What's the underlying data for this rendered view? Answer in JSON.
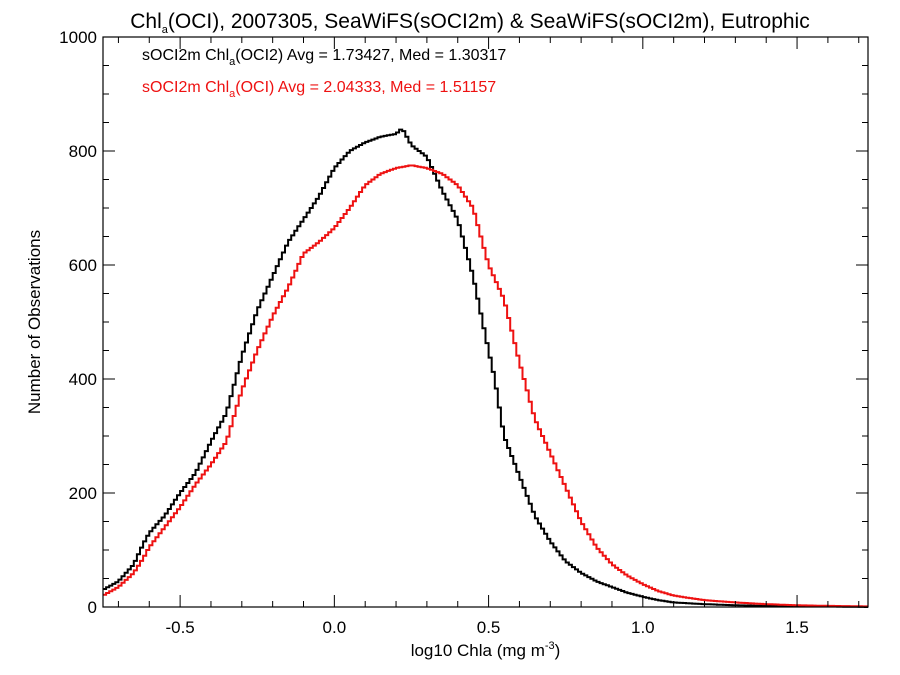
{
  "chart_data": {
    "type": "line",
    "title": {
      "prefix": "Chl",
      "sub": "a",
      "suffix": "(OCI), 2007305, SeaWiFS(sOCI2m) & SeaWiFS(sOCI2m), Eutrophic"
    },
    "xlabel": {
      "prefix": "log10 Chla (mg m",
      "sup": "-3",
      "suffix": ")"
    },
    "ylabel": "Number of Observations",
    "xlim": [
      -0.75,
      1.73
    ],
    "ylim": [
      0,
      1000
    ],
    "xticks": [
      -0.5,
      0.0,
      0.5,
      1.0,
      1.5
    ],
    "xtick_labels": [
      "-0.5",
      "0.0",
      "0.5",
      "1.0",
      "1.5"
    ],
    "yticks": [
      0,
      200,
      400,
      600,
      800,
      1000
    ],
    "ytick_labels": [
      "0",
      "200",
      "400",
      "600",
      "800",
      "1000"
    ],
    "step": true,
    "legend_position": "top-left",
    "series": [
      {
        "legend": {
          "prefix": "sOCI2m Chl",
          "sub": "a",
          "suffix": "(OCI2) Avg = 1.73427, Med = 1.30317"
        },
        "color": "#000000",
        "points": [
          [
            -0.75,
            30
          ],
          [
            -0.7,
            45
          ],
          [
            -0.65,
            75
          ],
          [
            -0.62,
            110
          ],
          [
            -0.6,
            130
          ],
          [
            -0.55,
            160
          ],
          [
            -0.5,
            200
          ],
          [
            -0.45,
            235
          ],
          [
            -0.4,
            290
          ],
          [
            -0.35,
            340
          ],
          [
            -0.3,
            440
          ],
          [
            -0.25,
            520
          ],
          [
            -0.2,
            580
          ],
          [
            -0.15,
            640
          ],
          [
            -0.1,
            680
          ],
          [
            -0.05,
            720
          ],
          [
            0.0,
            770
          ],
          [
            0.05,
            800
          ],
          [
            0.1,
            815
          ],
          [
            0.15,
            825
          ],
          [
            0.2,
            830
          ],
          [
            0.22,
            840
          ],
          [
            0.25,
            810
          ],
          [
            0.3,
            790
          ],
          [
            0.35,
            730
          ],
          [
            0.4,
            680
          ],
          [
            0.45,
            580
          ],
          [
            0.5,
            450
          ],
          [
            0.52,
            400
          ],
          [
            0.55,
            300
          ],
          [
            0.6,
            230
          ],
          [
            0.65,
            160
          ],
          [
            0.7,
            115
          ],
          [
            0.75,
            80
          ],
          [
            0.8,
            60
          ],
          [
            0.85,
            45
          ],
          [
            0.9,
            35
          ],
          [
            0.95,
            25
          ],
          [
            1.0,
            18
          ],
          [
            1.05,
            12
          ],
          [
            1.1,
            8
          ],
          [
            1.2,
            5
          ],
          [
            1.3,
            3
          ],
          [
            1.4,
            2
          ],
          [
            1.5,
            1
          ],
          [
            1.6,
            1
          ],
          [
            1.73,
            0
          ]
        ]
      },
      {
        "legend": {
          "prefix": "sOCI2m Chl",
          "sub": "a",
          "suffix": "(OCI) Avg = 2.04333, Med = 1.51157"
        },
        "color": "#ee1111",
        "points": [
          [
            -0.75,
            20
          ],
          [
            -0.7,
            35
          ],
          [
            -0.65,
            60
          ],
          [
            -0.62,
            85
          ],
          [
            -0.6,
            105
          ],
          [
            -0.55,
            140
          ],
          [
            -0.5,
            175
          ],
          [
            -0.45,
            215
          ],
          [
            -0.4,
            250
          ],
          [
            -0.35,
            290
          ],
          [
            -0.3,
            380
          ],
          [
            -0.25,
            450
          ],
          [
            -0.2,
            510
          ],
          [
            -0.15,
            560
          ],
          [
            -0.1,
            620
          ],
          [
            -0.05,
            640
          ],
          [
            0.0,
            665
          ],
          [
            0.05,
            700
          ],
          [
            0.1,
            740
          ],
          [
            0.15,
            760
          ],
          [
            0.2,
            770
          ],
          [
            0.25,
            775
          ],
          [
            0.3,
            770
          ],
          [
            0.35,
            760
          ],
          [
            0.4,
            740
          ],
          [
            0.45,
            700
          ],
          [
            0.5,
            600
          ],
          [
            0.55,
            540
          ],
          [
            0.6,
            430
          ],
          [
            0.65,
            330
          ],
          [
            0.7,
            270
          ],
          [
            0.75,
            210
          ],
          [
            0.8,
            150
          ],
          [
            0.85,
            105
          ],
          [
            0.9,
            75
          ],
          [
            0.95,
            55
          ],
          [
            1.0,
            40
          ],
          [
            1.05,
            28
          ],
          [
            1.1,
            20
          ],
          [
            1.2,
            12
          ],
          [
            1.3,
            8
          ],
          [
            1.4,
            5
          ],
          [
            1.5,
            3
          ],
          [
            1.6,
            2
          ],
          [
            1.73,
            1
          ]
        ]
      }
    ]
  }
}
